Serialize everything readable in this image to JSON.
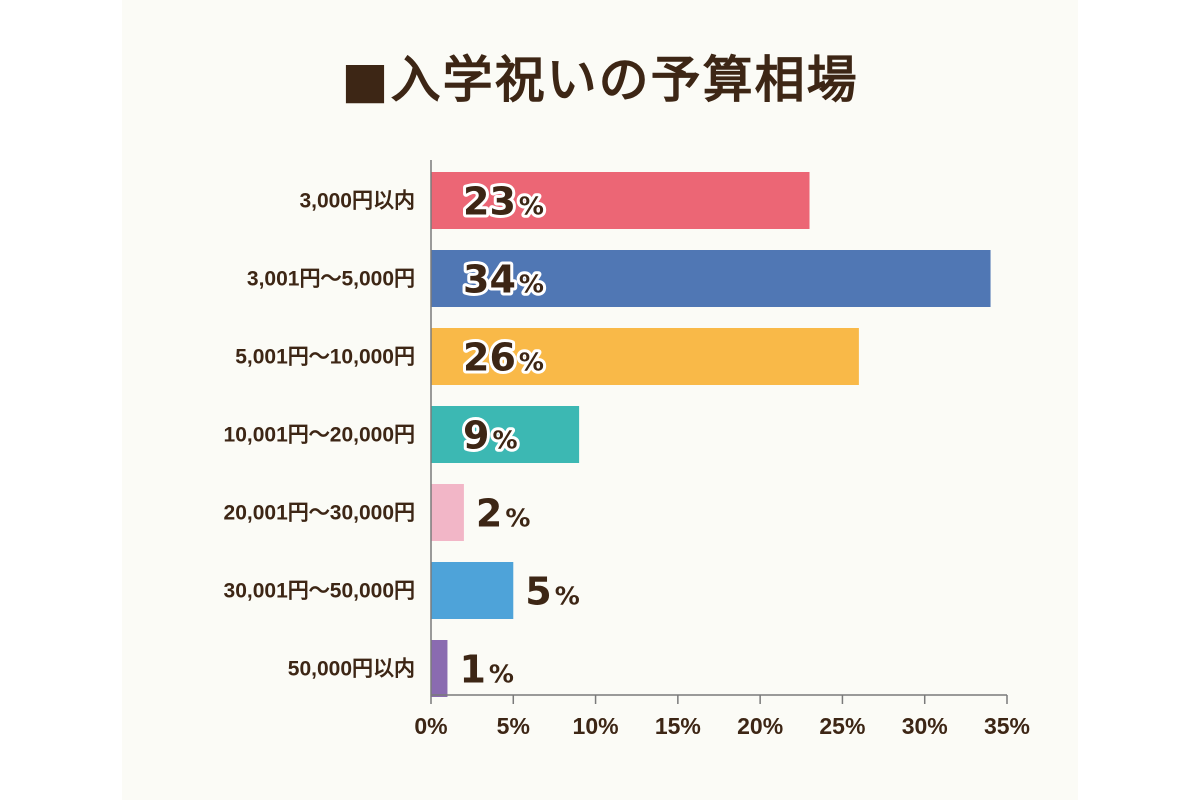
{
  "chart_data": {
    "type": "bar",
    "orientation": "horizontal",
    "title": "■入学祝いの予算相場",
    "categories": [
      "3,000円以内",
      "3,001円～5,000円",
      "5,001円～10,000円",
      "10,001円～20,000円",
      "20,001円～30,000円",
      "30,001円～50,000円",
      "50,000円以内"
    ],
    "values": [
      23,
      34,
      26,
      9,
      2,
      5,
      1
    ],
    "data_labels": [
      "23",
      "34",
      "26",
      "9",
      "2",
      "5",
      "1"
    ],
    "data_label_unit": "%",
    "bar_colors": [
      "#ec6675",
      "#5077b4",
      "#f9b948",
      "#3cb8b3",
      "#f2b6c7",
      "#4ea3d9",
      "#8a6bb0"
    ],
    "xlim": [
      0,
      35
    ],
    "x_ticks": [
      0,
      5,
      10,
      15,
      20,
      25,
      30,
      35
    ],
    "x_tick_labels": [
      "0%",
      "5%",
      "10%",
      "15%",
      "20%",
      "25%",
      "30%",
      "35%"
    ],
    "xlabel": "",
    "ylabel": "",
    "grid": false,
    "legend": "none"
  }
}
